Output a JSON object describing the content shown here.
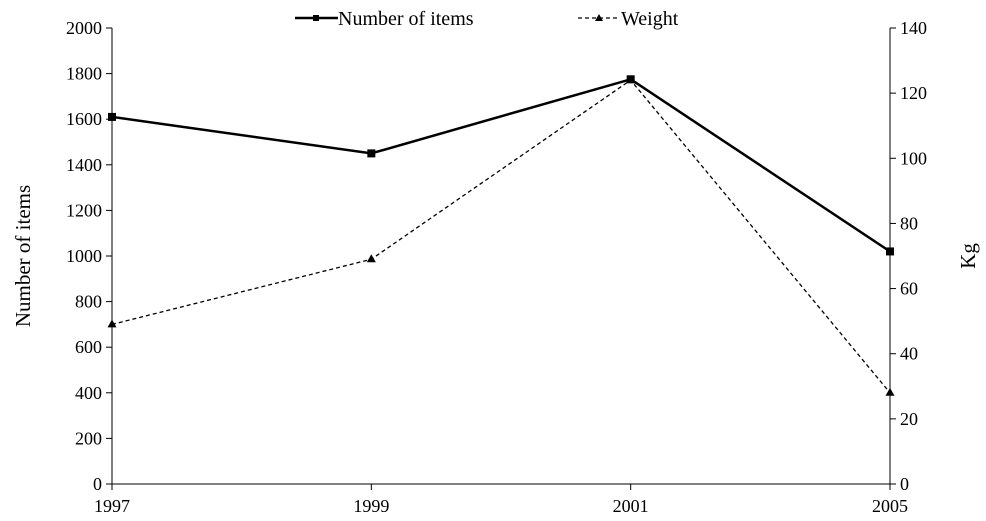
{
  "chart_data": {
    "type": "line",
    "x": [
      "1997",
      "1999",
      "2001",
      "2005"
    ],
    "xlabel": "",
    "ylabel": "Number of items",
    "y2label": "Kg",
    "ylim": [
      0,
      2000
    ],
    "y2lim": [
      0,
      140
    ],
    "yticks": [
      "0",
      "200",
      "400",
      "600",
      "800",
      "1000",
      "1200",
      "1400",
      "1600",
      "1800",
      "2000"
    ],
    "y2ticks": [
      "0",
      "20",
      "40",
      "60",
      "80",
      "100",
      "120",
      "140"
    ],
    "grid": false,
    "legend_position": "top",
    "series": [
      {
        "name": "Number of items",
        "axis": "left",
        "style": "solid",
        "marker": "square",
        "color": "#000000",
        "values": [
          1610,
          1450,
          1775,
          1020
        ]
      },
      {
        "name": "Weight",
        "axis": "right",
        "style": "dashed",
        "marker": "triangle",
        "color": "#000000",
        "values": [
          49,
          69,
          124,
          28
        ]
      }
    ]
  }
}
